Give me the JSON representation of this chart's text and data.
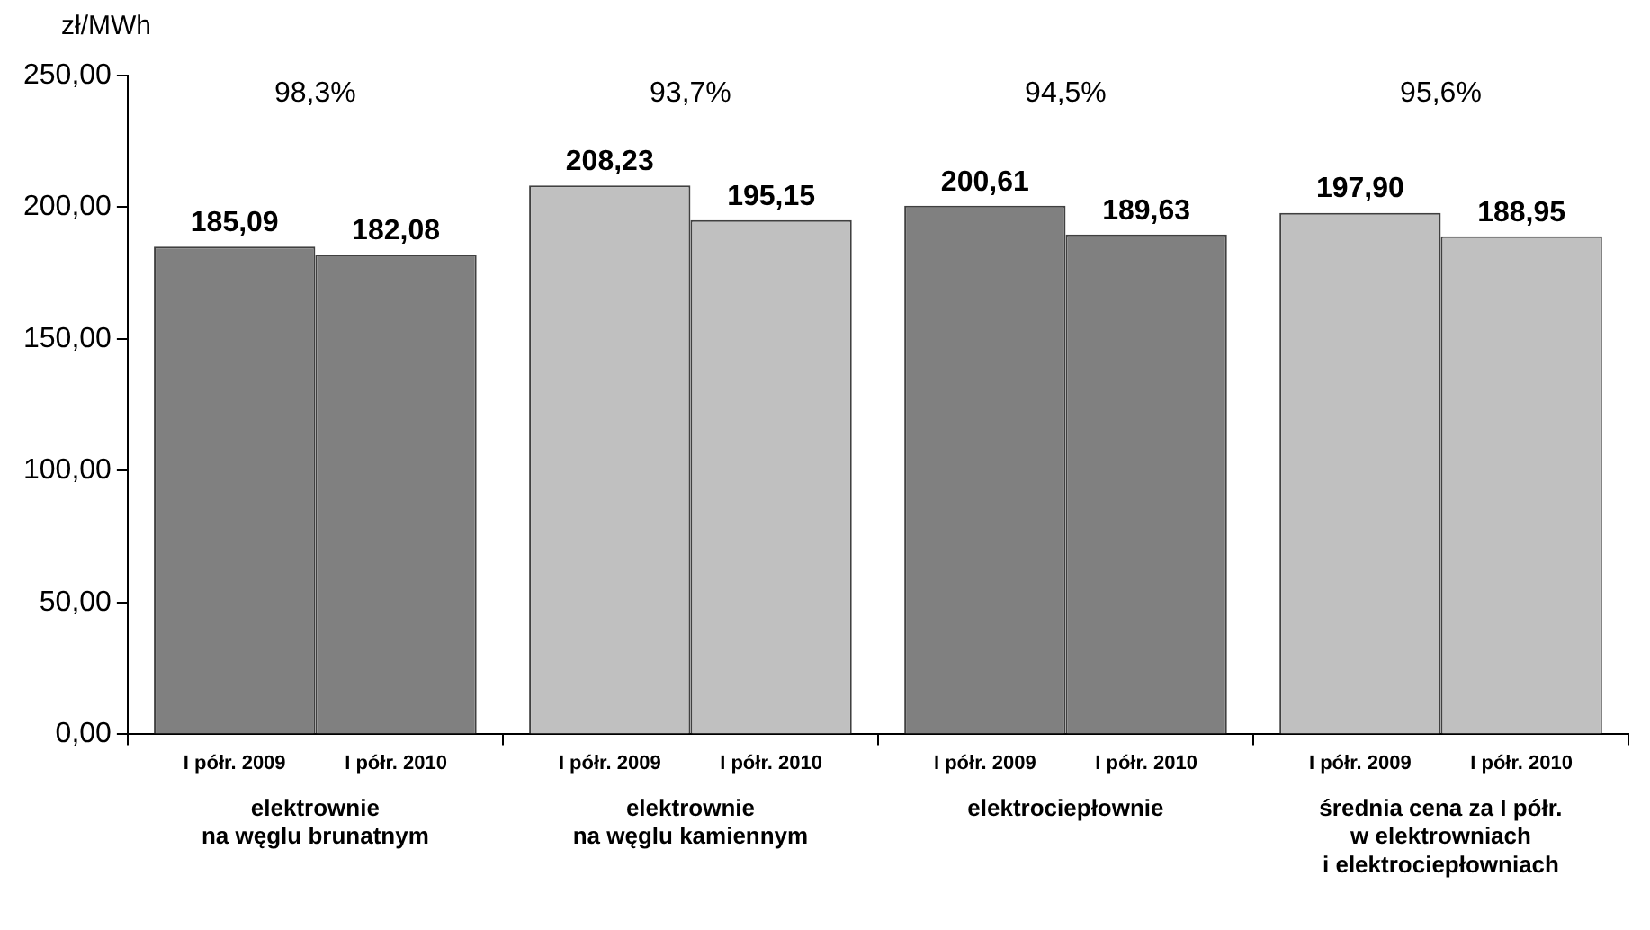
{
  "chart_data": {
    "type": "bar",
    "ylabel": "zł/MWh",
    "categories": [
      "elektrownie\nna węglu brunatnym",
      "elektrownie\nna węglu kamiennym",
      "elektrociepłownie",
      "średnia cena za I półr.\nw elektrowniach\ni elektrociepłowniach"
    ],
    "series": [
      {
        "name": "I półr. 2009",
        "colors": [
          "#808080",
          "#c0c0c0",
          "#808080",
          "#c0c0c0"
        ],
        "values": [
          185.09,
          208.23,
          200.61,
          197.9
        ],
        "value_labels": [
          "185,09",
          "208,23",
          "200,61",
          "197,90"
        ]
      },
      {
        "name": "I półr. 2010",
        "colors": [
          "#808080",
          "#c0c0c0",
          "#808080",
          "#c0c0c0"
        ],
        "values": [
          182.08,
          195.15,
          189.63,
          188.95
        ],
        "value_labels": [
          "182,08",
          "195,15",
          "189,63",
          "188,95"
        ]
      }
    ],
    "ylim": [
      0,
      250
    ],
    "yticks": [
      {
        "value": 0,
        "label": "0,00"
      },
      {
        "value": 50,
        "label": "50,00"
      },
      {
        "value": 100,
        "label": "100,00"
      },
      {
        "value": 150,
        "label": "150,00"
      },
      {
        "value": 200,
        "label": "200,00"
      },
      {
        "value": 250,
        "label": "250,00"
      }
    ],
    "annotations": [
      "98,3%",
      "93,7%",
      "94,5%",
      "95,6%"
    ],
    "grid": false,
    "legend": false
  }
}
